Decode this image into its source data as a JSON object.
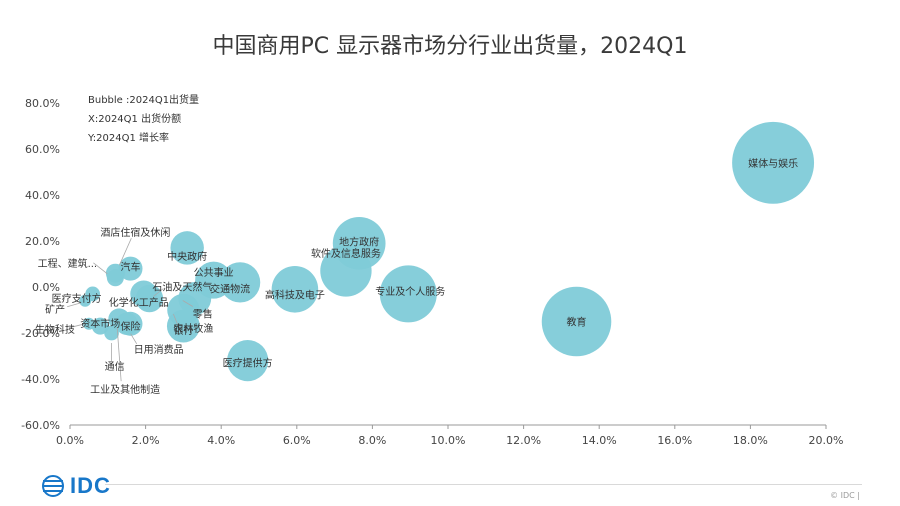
{
  "page": {
    "title": "中国商用PC 显示器市场分行业出货量，2024Q1",
    "copyright": "© IDC |",
    "logo_text": "IDC"
  },
  "colors": {
    "bubble": "#7fcbd8",
    "axis": "#999999",
    "text": "#333333",
    "brand": "#1877c9"
  },
  "chart_data": {
    "type": "bubble",
    "title": "中国商用PC 显示器市场分行业出货量，2024Q1",
    "notes": [
      "Bubble :2024Q1出货量",
      "X:2024Q1 出货份额",
      "Y:2024Q1 增长率"
    ],
    "xlim": [
      0,
      20
    ],
    "ylim": [
      -60,
      80
    ],
    "x_ticks": [
      "0.0%",
      "2.0%",
      "4.0%",
      "6.0%",
      "8.0%",
      "10.0%",
      "12.0%",
      "14.0%",
      "16.0%",
      "18.0%",
      "20.0%"
    ],
    "y_ticks": [
      "80.0%",
      "60.0%",
      "40.0%",
      "20.0%",
      "0.0%",
      "-20.0%",
      "-40.0%",
      "-60.0%"
    ],
    "points": [
      {
        "name": "媒体与娱乐",
        "x": 18.6,
        "y": 54,
        "size": 18.6
      },
      {
        "name": "教育",
        "x": 13.4,
        "y": -15,
        "size": 13.4
      },
      {
        "name": "专业及个人服务",
        "x": 8.95,
        "y": -3,
        "size": 9.0
      },
      {
        "name": "地方政府",
        "x": 7.65,
        "y": 19,
        "size": 7.7
      },
      {
        "name": "软件及信息服务",
        "x": 7.3,
        "y": 7,
        "size": 7.3
      },
      {
        "name": "高科技及电子",
        "x": 5.95,
        "y": -1,
        "size": 6.0
      },
      {
        "name": "交通物流",
        "x": 4.5,
        "y": 2,
        "size": 4.5
      },
      {
        "name": "医疗提供方",
        "x": 4.7,
        "y": -32,
        "size": 4.7
      },
      {
        "name": "公共事业",
        "x": 3.8,
        "y": 3,
        "size": 3.8
      },
      {
        "name": "中央政府",
        "x": 3.1,
        "y": 17,
        "size": 3.1
      },
      {
        "name": "零售",
        "x": 3.3,
        "y": -5,
        "size": 3.0
      },
      {
        "name": "农林牧渔",
        "x": 3.0,
        "y": -10,
        "size": 2.9
      },
      {
        "name": "银行",
        "x": 3.0,
        "y": -17,
        "size": 3.0
      },
      {
        "name": "石油及天然气",
        "x": 2.1,
        "y": -5,
        "size": 2.1
      },
      {
        "name": "汽车",
        "x": 1.6,
        "y": 8,
        "size": 1.6
      },
      {
        "name": "化学化工产品",
        "x": 1.95,
        "y": -3,
        "size": 2.0
      },
      {
        "name": "保险",
        "x": 1.6,
        "y": -16,
        "size": 1.6
      },
      {
        "name": "日用消费品",
        "x": 1.5,
        "y": -16,
        "size": 1.4
      },
      {
        "name": "酒店住宿及休闲",
        "x": 1.2,
        "y": 6,
        "size": 1.0
      },
      {
        "name": "医疗支付方",
        "x": 0.6,
        "y": -3,
        "size": 0.6
      },
      {
        "name": "工程、建筑...",
        "x": 1.2,
        "y": 4,
        "size": 0.8
      },
      {
        "name": "资本市场",
        "x": 0.8,
        "y": -17,
        "size": 0.8
      },
      {
        "name": "通信",
        "x": 1.1,
        "y": -20,
        "size": 0.6
      },
      {
        "name": "矿产",
        "x": 0.4,
        "y": -6,
        "size": 0.4
      },
      {
        "name": "生物科技",
        "x": 0.5,
        "y": -16,
        "size": 0.4
      },
      {
        "name": "工业及其他制造",
        "x": 1.3,
        "y": -14,
        "size": 1.3
      }
    ]
  }
}
